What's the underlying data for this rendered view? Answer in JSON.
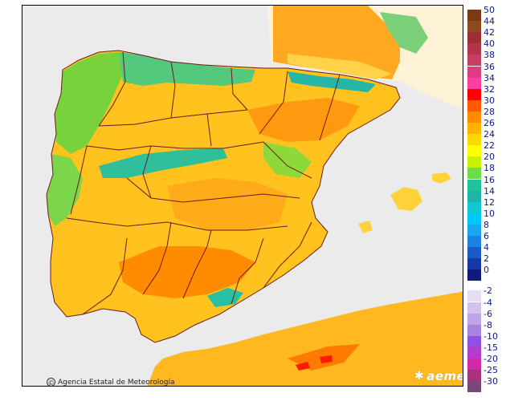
{
  "map": {
    "credit": "Agencia Estatal de Meteorología",
    "credit_symbol": "©",
    "brand": "aemet",
    "colors": {
      "sea": "#ebebeb",
      "france": "#fdf2d5",
      "boundary": "#6b1a22"
    }
  },
  "legend": {
    "positive": [
      {
        "label": "50",
        "color": "#7a3b14"
      },
      {
        "label": "44",
        "color": "#8c4a1e"
      },
      {
        "label": "42",
        "color": "#9c2f2f"
      },
      {
        "label": "40",
        "color": "#b4344a"
      },
      {
        "label": "38",
        "color": "#c73e62"
      },
      {
        "label": "36",
        "color": "#dd3d82"
      },
      {
        "label": "34",
        "color": "#ff3fa0"
      },
      {
        "label": "32",
        "color": "#ff0000"
      },
      {
        "label": "30",
        "color": "#ff5a00"
      },
      {
        "label": "28",
        "color": "#ff8c00"
      },
      {
        "label": "26",
        "color": "#ffb300"
      },
      {
        "label": "24",
        "color": "#ffd700"
      },
      {
        "label": "22",
        "color": "#ffff00"
      },
      {
        "label": "20",
        "color": "#c8f000"
      },
      {
        "label": "18",
        "color": "#6cdc4a"
      },
      {
        "label": "16",
        "color": "#20c29a"
      },
      {
        "label": "14",
        "color": "#1fb4aa"
      },
      {
        "label": "12",
        "color": "#10c8d2"
      },
      {
        "label": "10",
        "color": "#00c8ff"
      },
      {
        "label": "8",
        "color": "#18a8f0"
      },
      {
        "label": "6",
        "color": "#1c84e0"
      },
      {
        "label": "4",
        "color": "#1a5ac8"
      },
      {
        "label": "2",
        "color": "#1838a8"
      },
      {
        "label": "0",
        "color": "#0c1c78"
      }
    ],
    "negative": [
      {
        "label": "-2",
        "color": "#e6dcf4"
      },
      {
        "label": "-4",
        "color": "#d4c2ee"
      },
      {
        "label": "-6",
        "color": "#bea4e6"
      },
      {
        "label": "-8",
        "color": "#a882dc"
      },
      {
        "label": "-10",
        "color": "#9150e4"
      },
      {
        "label": "-15",
        "color": "#b63cd0"
      },
      {
        "label": "-20",
        "color": "#d02aa8"
      },
      {
        "label": "-25",
        "color": "#a8327e"
      },
      {
        "label": "-30",
        "color": "#7a4878"
      }
    ]
  }
}
